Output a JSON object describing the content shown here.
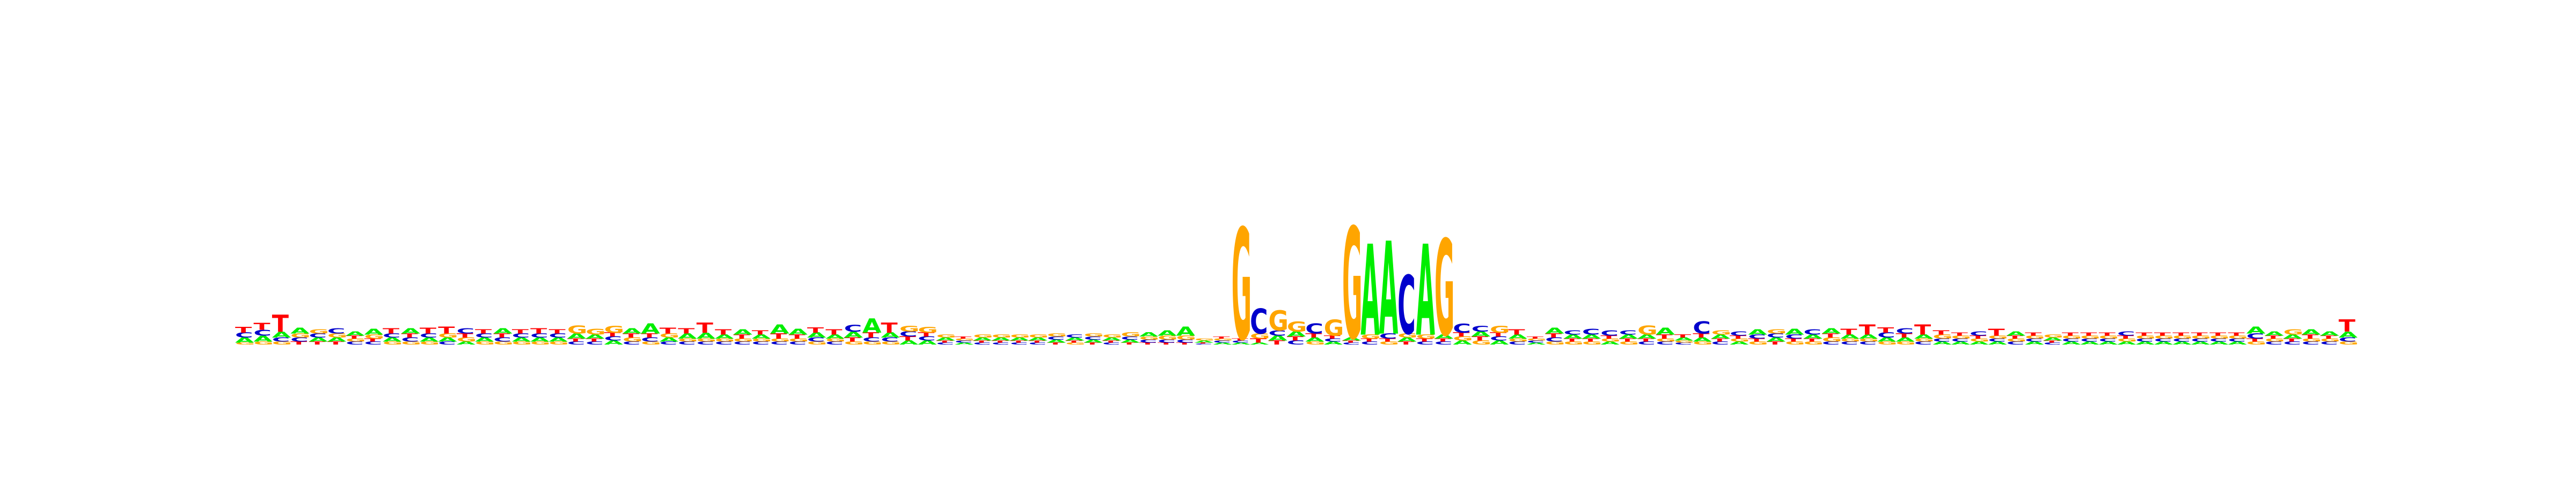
{
  "sequence_logo": {
    "alphabet": [
      "A",
      "C",
      "G",
      "T"
    ],
    "colors": {
      "A": "#00ee00",
      "C": "#0000cc",
      "G": "#ffa500",
      "T": "#ff0000"
    },
    "y_max_bits": 2,
    "positions": [
      {
        "A": 0.05,
        "C": 0.05,
        "G": 0.02,
        "T": 0.06
      },
      {
        "A": 0.06,
        "C": 0.06,
        "G": 0.03,
        "T": 0.07
      },
      {
        "A": 0.06,
        "C": 0.04,
        "G": 0.03,
        "T": 0.17
      },
      {
        "A": 0.06,
        "C": 0.04,
        "G": 0.04,
        "T": 0.03
      },
      {
        "A": 0.04,
        "C": 0.04,
        "G": 0.04,
        "T": 0.03
      },
      {
        "A": 0.04,
        "C": 0.05,
        "G": 0.04,
        "T": 0.03
      },
      {
        "A": 0.04,
        "C": 0.03,
        "G": 0.03,
        "T": 0.03
      },
      {
        "A": 0.06,
        "C": 0.03,
        "G": 0.04,
        "T": 0.03
      },
      {
        "A": 0.04,
        "C": 0.04,
        "G": 0.03,
        "T": 0.05
      },
      {
        "A": 0.05,
        "C": 0.04,
        "G": 0.03,
        "T": 0.04
      },
      {
        "A": 0.04,
        "C": 0.04,
        "G": 0.03,
        "T": 0.06
      },
      {
        "A": 0.04,
        "C": 0.03,
        "G": 0.04,
        "T": 0.07
      },
      {
        "A": 0.03,
        "C": 0.05,
        "G": 0.04,
        "T": 0.04
      },
      {
        "A": 0.04,
        "C": 0.04,
        "G": 0.03,
        "T": 0.04
      },
      {
        "A": 0.05,
        "C": 0.04,
        "G": 0.03,
        "T": 0.04
      },
      {
        "A": 0.04,
        "C": 0.04,
        "G": 0.03,
        "T": 0.04
      },
      {
        "A": 0.04,
        "C": 0.04,
        "G": 0.03,
        "T": 0.05
      },
      {
        "A": 0.04,
        "C": 0.04,
        "G": 0.03,
        "T": 0.04
      },
      {
        "A": 0.05,
        "C": 0.03,
        "G": 0.08,
        "T": 0.03
      },
      {
        "A": 0.04,
        "C": 0.03,
        "G": 0.06,
        "T": 0.03
      },
      {
        "A": 0.04,
        "C": 0.04,
        "G": 0.07,
        "T": 0.04
      },
      {
        "A": 0.05,
        "C": 0.03,
        "G": 0.04,
        "T": 0.04
      },
      {
        "A": 0.1,
        "C": 0.04,
        "G": 0.03,
        "T": 0.04
      },
      {
        "A": 0.04,
        "C": 0.03,
        "G": 0.04,
        "T": 0.06
      },
      {
        "A": 0.05,
        "C": 0.03,
        "G": 0.03,
        "T": 0.05
      },
      {
        "A": 0.06,
        "C": 0.03,
        "G": 0.03,
        "T": 0.1
      },
      {
        "A": 0.04,
        "C": 0.03,
        "G": 0.03,
        "T": 0.05
      },
      {
        "A": 0.05,
        "C": 0.03,
        "G": 0.03,
        "T": 0.04
      },
      {
        "A": 0.04,
        "C": 0.03,
        "G": 0.03,
        "T": 0.04
      },
      {
        "A": 0.09,
        "C": 0.03,
        "G": 0.03,
        "T": 0.05
      },
      {
        "A": 0.06,
        "C": 0.03,
        "G": 0.03,
        "T": 0.04
      },
      {
        "A": 0.05,
        "C": 0.04,
        "G": 0.03,
        "T": 0.05
      },
      {
        "A": 0.04,
        "C": 0.03,
        "G": 0.03,
        "T": 0.05
      },
      {
        "A": 0.06,
        "C": 0.07,
        "G": 0.03,
        "T": 0.04
      },
      {
        "A": 0.14,
        "C": 0.04,
        "G": 0.03,
        "T": 0.05
      },
      {
        "A": 0.05,
        "C": 0.04,
        "G": 0.03,
        "T": 0.1
      },
      {
        "A": 0.04,
        "C": 0.05,
        "G": 0.06,
        "T": 0.04
      },
      {
        "A": 0.04,
        "C": 0.04,
        "G": 0.06,
        "T": 0.04
      },
      {
        "A": 0.03,
        "C": 0.02,
        "G": 0.03,
        "T": 0.02
      },
      {
        "A": 0.02,
        "C": 0.02,
        "G": 0.02,
        "T": 0.02
      },
      {
        "A": 0.03,
        "C": 0.02,
        "G": 0.03,
        "T": 0.02
      },
      {
        "A": 0.03,
        "C": 0.02,
        "G": 0.03,
        "T": 0.02
      },
      {
        "A": 0.03,
        "C": 0.02,
        "G": 0.03,
        "T": 0.02
      },
      {
        "A": 0.03,
        "C": 0.02,
        "G": 0.03,
        "T": 0.02
      },
      {
        "A": 0.03,
        "C": 0.03,
        "G": 0.03,
        "T": 0.02
      },
      {
        "A": 0.03,
        "C": 0.03,
        "G": 0.02,
        "T": 0.02
      },
      {
        "A": 0.03,
        "C": 0.03,
        "G": 0.03,
        "T": 0.02
      },
      {
        "A": 0.03,
        "C": 0.02,
        "G": 0.03,
        "T": 0.02
      },
      {
        "A": 0.03,
        "C": 0.03,
        "G": 0.04,
        "T": 0.02
      },
      {
        "A": 0.04,
        "C": 0.03,
        "G": 0.03,
        "T": 0.02
      },
      {
        "A": 0.05,
        "C": 0.03,
        "G": 0.04,
        "T": 0.02
      },
      {
        "A": 0.09,
        "C": 0.03,
        "G": 0.04,
        "T": 0.02
      },
      {
        "A": 0.02,
        "C": 0.01,
        "G": 0.02,
        "T": 0.01
      },
      {
        "A": 0.02,
        "C": 0.02,
        "G": 0.02,
        "T": 0.02
      },
      {
        "A": 0.02,
        "C": 0.02,
        "G": 1.1,
        "T": 0.02
      },
      {
        "A": 0.02,
        "C": 0.25,
        "G": 0.05,
        "T": 0.04
      },
      {
        "A": 0.05,
        "C": 0.05,
        "G": 0.2,
        "T": 0.04
      },
      {
        "A": 0.05,
        "C": 0.04,
        "G": 0.1,
        "T": 0.04
      },
      {
        "A": 0.04,
        "C": 0.1,
        "G": 0.03,
        "T": 0.04
      },
      {
        "A": 0.03,
        "C": 0.03,
        "G": 0.16,
        "T": 0.03
      },
      {
        "A": 0.03,
        "C": 0.02,
        "G": 1.1,
        "T": 0.02
      },
      {
        "A": 0.9,
        "C": 0.03,
        "G": 0.04,
        "T": 0.03
      },
      {
        "A": 0.92,
        "C": 0.05,
        "G": 0.03,
        "T": 0.03
      },
      {
        "A": 0.04,
        "C": 0.58,
        "G": 0.04,
        "T": 0.03
      },
      {
        "A": 0.9,
        "C": 0.03,
        "G": 0.04,
        "T": 0.03
      },
      {
        "A": 0.04,
        "C": 0.03,
        "G": 0.95,
        "T": 0.03
      },
      {
        "A": 0.04,
        "C": 0.09,
        "G": 0.04,
        "T": 0.04
      },
      {
        "A": 0.05,
        "C": 0.06,
        "G": 0.04,
        "T": 0.04
      },
      {
        "A": 0.04,
        "C": 0.04,
        "G": 0.07,
        "T": 0.04
      },
      {
        "A": 0.04,
        "C": 0.03,
        "G": 0.03,
        "T": 0.05
      },
      {
        "A": 0.02,
        "C": 0.02,
        "G": 0.02,
        "T": 0.02
      },
      {
        "A": 0.06,
        "C": 0.04,
        "G": 0.03,
        "T": 0.04
      },
      {
        "A": 0.04,
        "C": 0.04,
        "G": 0.03,
        "T": 0.03
      },
      {
        "A": 0.04,
        "C": 0.06,
        "G": 0.03,
        "T": 0.03
      },
      {
        "A": 0.03,
        "C": 0.05,
        "G": 0.03,
        "T": 0.03
      },
      {
        "A": 0.04,
        "C": 0.04,
        "G": 0.03,
        "T": 0.03
      },
      {
        "A": 0.04,
        "C": 0.03,
        "G": 0.09,
        "T": 0.03
      },
      {
        "A": 0.07,
        "C": 0.03,
        "G": 0.03,
        "T": 0.04
      },
      {
        "A": 0.03,
        "C": 0.02,
        "G": 0.02,
        "T": 0.03
      },
      {
        "A": 0.04,
        "C": 0.12,
        "G": 0.03,
        "T": 0.04
      },
      {
        "A": 0.04,
        "C": 0.03,
        "G": 0.04,
        "T": 0.03
      },
      {
        "A": 0.03,
        "C": 0.04,
        "G": 0.03,
        "T": 0.03
      },
      {
        "A": 0.05,
        "C": 0.04,
        "G": 0.03,
        "T": 0.03
      },
      {
        "A": 0.04,
        "C": 0.04,
        "G": 0.04,
        "T": 0.03
      },
      {
        "A": 0.06,
        "C": 0.04,
        "G": 0.03,
        "T": 0.03
      },
      {
        "A": 0.04,
        "C": 0.05,
        "G": 0.03,
        "T": 0.03
      },
      {
        "A": 0.05,
        "C": 0.03,
        "G": 0.04,
        "T": 0.04
      },
      {
        "A": 0.04,
        "C": 0.03,
        "G": 0.03,
        "T": 0.06
      },
      {
        "A": 0.04,
        "C": 0.03,
        "G": 0.03,
        "T": 0.1
      },
      {
        "A": 0.04,
        "C": 0.05,
        "G": 0.03,
        "T": 0.05
      },
      {
        "A": 0.04,
        "C": 0.05,
        "G": 0.03,
        "T": 0.04
      },
      {
        "A": 0.04,
        "C": 0.03,
        "G": 0.03,
        "T": 0.1
      },
      {
        "A": 0.03,
        "C": 0.03,
        "G": 0.04,
        "T": 0.04
      },
      {
        "A": 0.03,
        "C": 0.03,
        "G": 0.03,
        "T": 0.03
      },
      {
        "A": 0.03,
        "C": 0.04,
        "G": 0.03,
        "T": 0.03
      },
      {
        "A": 0.03,
        "C": 0.03,
        "G": 0.03,
        "T": 0.07
      },
      {
        "A": 0.04,
        "C": 0.03,
        "G": 0.03,
        "T": 0.03
      },
      {
        "A": 0.03,
        "C": 0.03,
        "G": 0.03,
        "T": 0.03
      },
      {
        "A": 0.03,
        "C": 0.02,
        "G": 0.03,
        "T": 0.02
      },
      {
        "A": 0.03,
        "C": 0.03,
        "G": 0.03,
        "T": 0.03
      },
      {
        "A": 0.03,
        "C": 0.03,
        "G": 0.03,
        "T": 0.03
      },
      {
        "A": 0.03,
        "C": 0.03,
        "G": 0.03,
        "T": 0.03
      },
      {
        "A": 0.03,
        "C": 0.04,
        "G": 0.03,
        "T": 0.03
      },
      {
        "A": 0.03,
        "C": 0.03,
        "G": 0.03,
        "T": 0.03
      },
      {
        "A": 0.03,
        "C": 0.03,
        "G": 0.03,
        "T": 0.03
      },
      {
        "A": 0.03,
        "C": 0.03,
        "G": 0.03,
        "T": 0.03
      },
      {
        "A": 0.03,
        "C": 0.03,
        "G": 0.03,
        "T": 0.03
      },
      {
        "A": 0.03,
        "C": 0.03,
        "G": 0.03,
        "T": 0.03
      },
      {
        "A": 0.03,
        "C": 0.03,
        "G": 0.03,
        "T": 0.03
      },
      {
        "A": 0.07,
        "C": 0.05,
        "G": 0.03,
        "T": 0.03
      },
      {
        "A": 0.04,
        "C": 0.03,
        "G": 0.03,
        "T": 0.03
      },
      {
        "A": 0.04,
        "C": 0.03,
        "G": 0.05,
        "T": 0.03
      },
      {
        "A": 0.05,
        "C": 0.03,
        "G": 0.03,
        "T": 0.04
      },
      {
        "A": 0.04,
        "C": 0.03,
        "G": 0.03,
        "T": 0.03
      },
      {
        "A": 0.06,
        "C": 0.04,
        "G": 0.03,
        "T": 0.12
      }
    ]
  }
}
